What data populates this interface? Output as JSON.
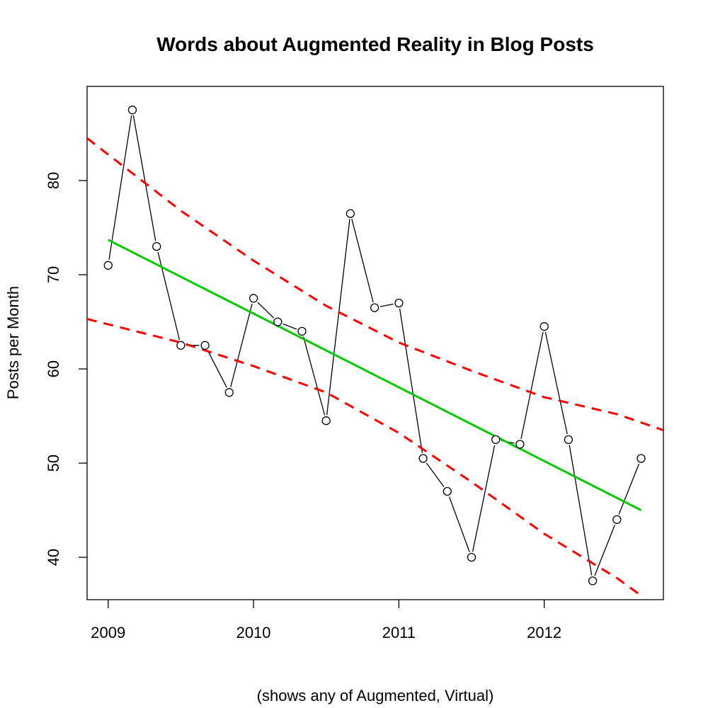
{
  "chart_data": {
    "type": "line",
    "title": "Words about Augmented Reality in Blog Posts",
    "xlabel": "(shows any of Augmented, Virtual)",
    "ylabel": "Posts per Month",
    "xlim": [
      2008.855,
      2012.82
    ],
    "ylim": [
      35.5,
      90.0
    ],
    "x_ticks": [
      2009,
      2010,
      2011,
      2012
    ],
    "y_ticks": [
      40,
      50,
      60,
      70,
      80
    ],
    "grid": false,
    "legend": "none",
    "series": [
      {
        "style": "points-and-lines",
        "color": "#000000",
        "x": [
          2009.0,
          2009.1667,
          2009.3333,
          2009.5,
          2009.6667,
          2009.8333,
          2010.0,
          2010.1667,
          2010.3333,
          2010.5,
          2010.6667,
          2010.8333,
          2011.0,
          2011.1667,
          2011.3333,
          2011.5,
          2011.6667,
          2011.8333,
          2012.0,
          2012.1667,
          2012.3333,
          2012.5,
          2012.6667
        ],
        "y": [
          71.0,
          87.5,
          73.0,
          62.5,
          62.5,
          57.5,
          67.5,
          65.0,
          64.0,
          54.5,
          76.5,
          66.5,
          67.0,
          50.5,
          47.0,
          40.0,
          52.5,
          52.0,
          64.5,
          52.5,
          37.5,
          44.0,
          50.5
        ]
      },
      {
        "style": "fit-line",
        "color": "#00cc00",
        "x": [
          2009.0,
          2012.6667
        ],
        "y": [
          73.7,
          45.0
        ]
      },
      {
        "style": "dashed-band-upper",
        "color": "#ff0000",
        "x": [
          2008.855,
          2009.5,
          2010.0,
          2010.5,
          2011.0,
          2011.5,
          2012.0,
          2012.5,
          2012.82
        ],
        "y": [
          84.5,
          76.8,
          71.5,
          66.7,
          62.8,
          59.8,
          57.0,
          55.2,
          53.5
        ]
      },
      {
        "style": "dashed-band-lower",
        "color": "#ff0000",
        "x": [
          2008.855,
          2009.5,
          2010.0,
          2010.5,
          2011.0,
          2011.5,
          2012.0,
          2012.5,
          2012.67
        ],
        "y": [
          65.3,
          62.8,
          60.3,
          57.5,
          53.2,
          48.0,
          42.5,
          37.8,
          35.9
        ]
      }
    ]
  }
}
